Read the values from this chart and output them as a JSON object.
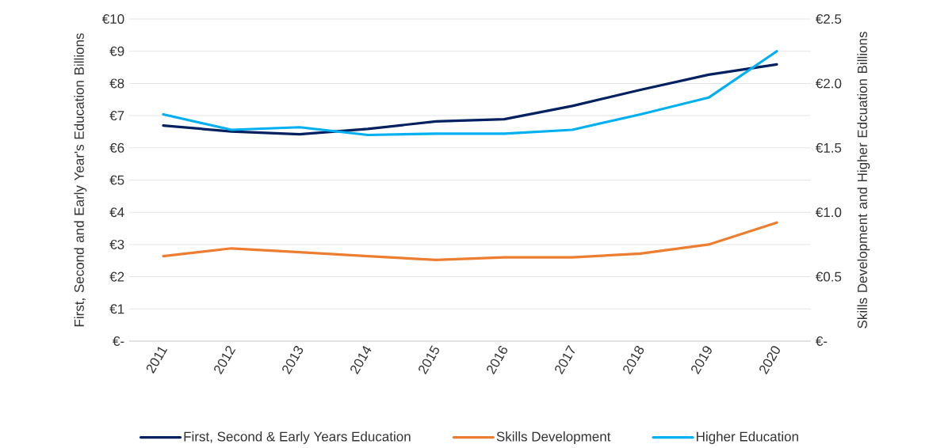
{
  "chart_data": {
    "type": "line",
    "categories": [
      "2011",
      "2012",
      "2013",
      "2014",
      "2015",
      "2016",
      "2017",
      "2018",
      "2019",
      "2020"
    ],
    "ylabel": "First, Second and Early Year's Education Billions",
    "y2label": "Skills Development and Higher Edcuation Billions",
    "series": [
      {
        "name": "First, Second & Early Years Education",
        "color": "#002060",
        "values": [
          6.69,
          6.51,
          6.42,
          6.59,
          6.82,
          6.89,
          7.3,
          7.8,
          8.27,
          8.59
        ]
      },
      {
        "name": "Skills Development",
        "color": "#ed7d31",
        "axis": "y2",
        "values": [
          0.66,
          0.72,
          0.69,
          0.66,
          0.63,
          0.65,
          0.65,
          0.68,
          0.75,
          0.92
        ]
      },
      {
        "name": "Higher Education",
        "color": "#00b0f0",
        "axis": "y2",
        "values": [
          1.76,
          1.64,
          1.66,
          1.6,
          1.61,
          1.61,
          1.64,
          1.76,
          1.89,
          2.25
        ]
      }
    ],
    "ylim": [
      0,
      10
    ],
    "yticks": [
      {
        "value": 0,
        "label": "€-"
      },
      {
        "value": 1,
        "label": "€1"
      },
      {
        "value": 2,
        "label": "€2"
      },
      {
        "value": 3,
        "label": "€3"
      },
      {
        "value": 4,
        "label": "€4"
      },
      {
        "value": 5,
        "label": "€5"
      },
      {
        "value": 6,
        "label": "€6"
      },
      {
        "value": 7,
        "label": "€7"
      },
      {
        "value": 8,
        "label": "€8"
      },
      {
        "value": 9,
        "label": "€9"
      },
      {
        "value": 10,
        "label": "€10"
      }
    ],
    "y2lim": [
      0,
      2.5
    ],
    "y2ticks": [
      {
        "value": 0,
        "label": "€-"
      },
      {
        "value": 0.5,
        "label": "€0.5"
      },
      {
        "value": 1,
        "label": "€1.0"
      },
      {
        "value": 1.5,
        "label": "€1.5"
      },
      {
        "value": 2,
        "label": "€2.0"
      },
      {
        "value": 2.5,
        "label": "€2.5"
      }
    ],
    "grid": "y",
    "legend": "bottom",
    "marker": "none",
    "line_style": "solid"
  }
}
